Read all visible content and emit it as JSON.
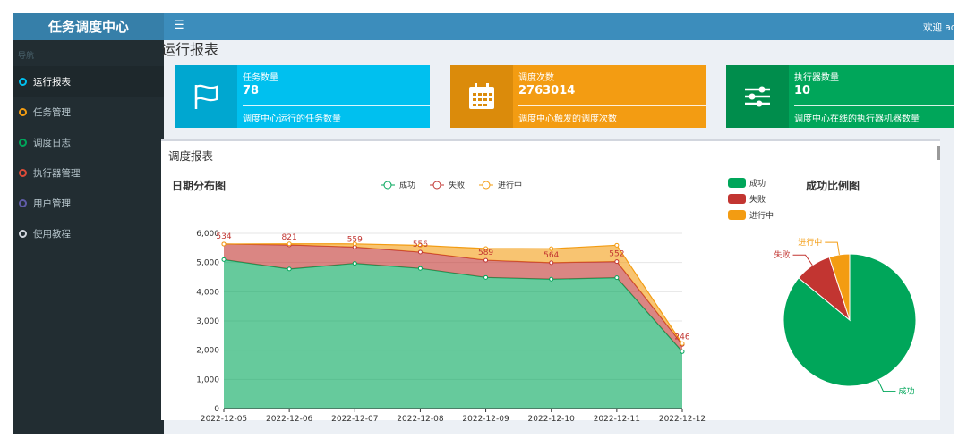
{
  "app": {
    "brand": "任务调度中心",
    "welcome": "欢迎 admin"
  },
  "sidebar": {
    "header": "导航",
    "items": [
      {
        "label": "运行报表",
        "color": "#00c0ef",
        "active": true
      },
      {
        "label": "任务管理",
        "color": "#f39c12",
        "active": false
      },
      {
        "label": "调度日志",
        "color": "#00a65a",
        "active": false
      },
      {
        "label": "执行器管理",
        "color": "#dd4b39",
        "active": false
      },
      {
        "label": "用户管理",
        "color": "#605ca8",
        "active": false
      },
      {
        "label": "使用教程",
        "color": "#d2d6de",
        "active": false
      }
    ]
  },
  "page": {
    "title": "运行报表"
  },
  "info_boxes": [
    {
      "title": "任务数量",
      "number": "78",
      "desc": "调度中心运行的任务数量",
      "color": "#00c0ef",
      "icon_bg": "#00a7d0",
      "icon": "flag-icon"
    },
    {
      "title": "调度次数",
      "number": "2763014",
      "desc": "调度中心触发的调度次数",
      "color": "#f39c12",
      "icon_bg": "#db8b0b",
      "icon": "calendar-icon"
    },
    {
      "title": "执行器数量",
      "number": "10",
      "desc": "调度中心在线的执行器机器数量",
      "color": "#00a65a",
      "icon_bg": "#008d4c",
      "icon": "sliders-icon"
    }
  ],
  "report": {
    "title": "调度报表",
    "line_chart_title": "日期分布图",
    "pie_chart_title": "成功比例图"
  },
  "chart_data": [
    {
      "type": "area",
      "stacked": true,
      "x": [
        "2022-12-05",
        "2022-12-06",
        "2022-12-07",
        "2022-12-08",
        "2022-12-09",
        "2022-12-10",
        "2022-12-11",
        "2022-12-12"
      ],
      "series": [
        {
          "name": "成功",
          "color": "#00a65a",
          "values": [
            5100,
            4780,
            4970,
            4800,
            4490,
            4430,
            4480,
            1950
          ]
        },
        {
          "name": "失败",
          "color": "#c23531",
          "values": [
            534,
            821,
            559,
            556,
            589,
            564,
            552,
            246
          ]
        },
        {
          "name": "进行中",
          "color": "#f39c12",
          "values": [
            0,
            40,
            110,
            230,
            400,
            480,
            560,
            30
          ]
        }
      ],
      "data_labels_series": "失败",
      "yticks": [
        0,
        1000,
        2000,
        3000,
        4000,
        5000,
        6000
      ],
      "ylim": [
        0,
        6000
      ],
      "legend": "top-center",
      "grid": true
    },
    {
      "type": "pie",
      "labels": [
        "成功",
        "失败",
        "进行中"
      ],
      "values": [
        86,
        9,
        5
      ],
      "colors": [
        "#00a65a",
        "#c23531",
        "#f39c12"
      ],
      "legend": "top-left"
    }
  ]
}
